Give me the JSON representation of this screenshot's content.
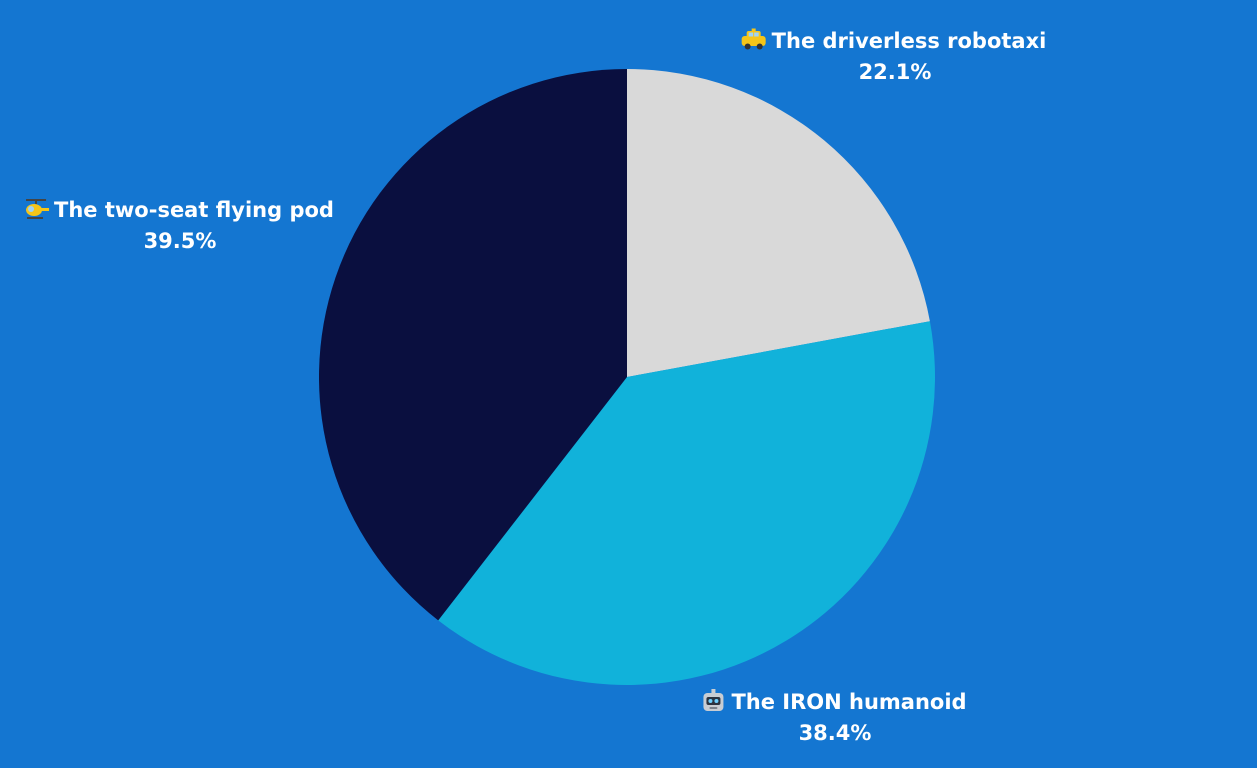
{
  "chart_data": {
    "type": "pie",
    "title": "",
    "slices": [
      {
        "label": "The driverless robotaxi",
        "icon": "taxi-icon",
        "value": 22.1,
        "value_label": "22.1%",
        "color": "#d9d9d9"
      },
      {
        "label": "The IRON humanoid",
        "icon": "robot-icon",
        "value": 38.4,
        "value_label": "38.4%",
        "color": "#11b2da"
      },
      {
        "label": "The two-seat flying pod",
        "icon": "helicopter-icon",
        "value": 39.5,
        "value_label": "39.5%",
        "color": "#0a0f3f"
      }
    ],
    "start_angle_deg": 0,
    "direction": "clockwise"
  },
  "colors": {
    "background": "#1476d1",
    "label_text": "#ffffff"
  }
}
